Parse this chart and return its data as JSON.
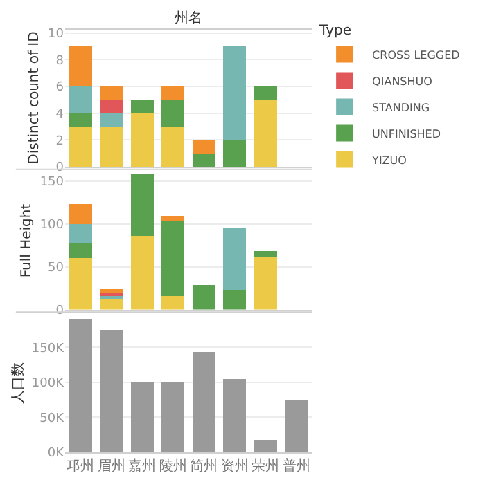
{
  "chart_data": [
    {
      "type": "bar",
      "title": "州名",
      "ylabel": "Distinct count of ID",
      "stacked": true,
      "legend": "right",
      "legend_title": "Type",
      "grid": "y",
      "tick_labels": "y",
      "categories": [
        "邛州",
        "眉州",
        "嘉州",
        "陵州",
        "简州",
        "资州",
        "荣州",
        "普州"
      ],
      "ylim": [
        0,
        10.3
      ],
      "yticks": [
        0,
        2,
        4,
        6,
        8,
        10
      ],
      "series": [
        {
          "name": "YIZUO",
          "color": "#edc948",
          "values": [
            3,
            3,
            4,
            3,
            null,
            null,
            5,
            null
          ]
        },
        {
          "name": "UNFINISHED",
          "color": "#59a14f",
          "values": [
            1,
            null,
            1,
            2,
            1,
            2,
            1,
            null
          ]
        },
        {
          "name": "STANDING",
          "color": "#76b7b2",
          "values": [
            2,
            1,
            null,
            null,
            null,
            7,
            null,
            null
          ]
        },
        {
          "name": "QIANSHUO",
          "color": "#e15759",
          "values": [
            null,
            1,
            null,
            null,
            null,
            null,
            null,
            null
          ]
        },
        {
          "name": "CROSS LEGGED",
          "color": "#f28e2b",
          "values": [
            3,
            1,
            null,
            1,
            1,
            null,
            null,
            null
          ]
        }
      ]
    },
    {
      "type": "bar",
      "ylabel": "Full Height",
      "stacked": true,
      "grid": "y",
      "tick_labels": "y",
      "categories": [
        "邛州",
        "眉州",
        "嘉州",
        "陵州",
        "简州",
        "资州",
        "荣州",
        "普州"
      ],
      "ylim": [
        0,
        161
      ],
      "yticks": [
        0,
        50,
        100,
        150
      ],
      "series": [
        {
          "color": "#edc948",
          "values": [
            60,
            12,
            86,
            16,
            null,
            null,
            61,
            null
          ]
        },
        {
          "color": "#59a14f",
          "values": [
            17,
            null,
            73,
            88,
            29,
            23,
            7,
            null
          ]
        },
        {
          "color": "#76b7b2",
          "values": [
            23,
            4,
            null,
            null,
            null,
            72,
            null,
            null
          ]
        },
        {
          "color": "#e15759",
          "values": [
            null,
            4,
            null,
            null,
            null,
            null,
            null,
            null
          ]
        },
        {
          "color": "#f28e2b",
          "values": [
            23,
            4,
            null,
            6,
            null,
            null,
            null,
            null
          ]
        }
      ]
    },
    {
      "type": "bar",
      "ylabel": "人口数",
      "grid": "y",
      "categories": [
        "邛州",
        "眉州",
        "嘉州",
        "陵州",
        "简州",
        "资州",
        "荣州",
        "普州"
      ],
      "ylim": [
        0,
        197000
      ],
      "yticks": [
        {
          "value": 0,
          "label": "0K"
        },
        {
          "value": 50000,
          "label": "50K"
        },
        {
          "value": 100000,
          "label": "100K"
        },
        {
          "value": 150000,
          "label": "150K"
        }
      ],
      "series": [
        {
          "color": "#9a9a9a",
          "values": [
            190000,
            175000,
            100000,
            101000,
            143000,
            105000,
            18000,
            75000
          ]
        }
      ]
    }
  ]
}
